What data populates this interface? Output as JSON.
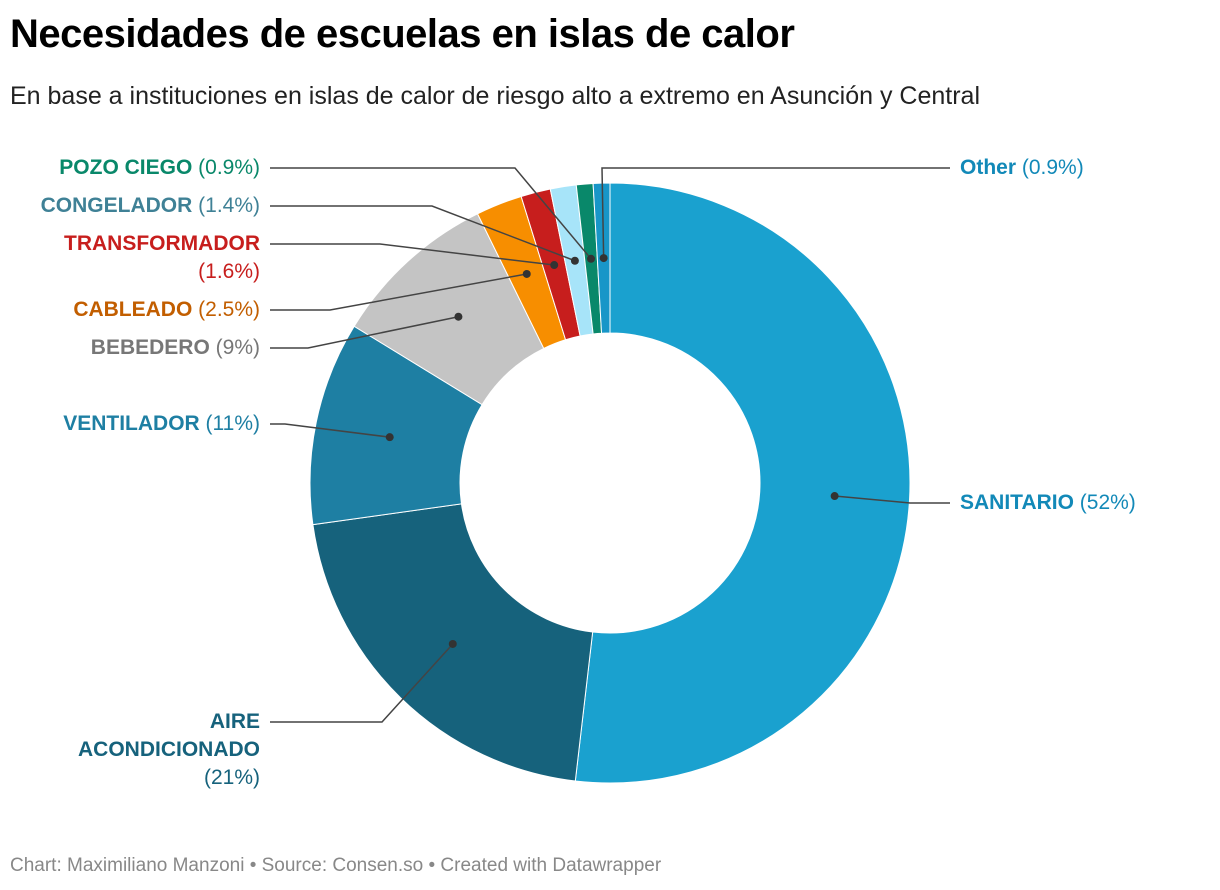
{
  "title": "Necesidades de escuelas en islas de calor",
  "subtitle": "En base a instituciones en islas de calor de riesgo alto a extremo en Asunción y Central",
  "footer": "Chart: Maximiliano Manzoni • Source: Consen.so • Created with Datawrapper",
  "chart_data": {
    "type": "pie",
    "variant": "donut",
    "categories": [
      "SANITARIO",
      "AIRE ACONDICIONADO",
      "VENTILADOR",
      "BEBEDERO",
      "CABLEADO",
      "TRANSFORMADOR",
      "CONGELADOR",
      "POZO CIEGO",
      "Other"
    ],
    "values": [
      52,
      21,
      11,
      9,
      2.5,
      1.6,
      1.4,
      0.9,
      0.9
    ],
    "value_labels": [
      "(52%)",
      "(21%)",
      "(11%)",
      "(9%)",
      "(2.5%)",
      "(1.6%)",
      "(1.4%)",
      "(0.9%)",
      "(0.9%)"
    ],
    "colors": [
      "#1aa1cf",
      "#16627c",
      "#1e7fa3",
      "#c4c4c4",
      "#f78e00",
      "#c71e1d",
      "#a7e4f9",
      "#09886a",
      "#1896c8"
    ],
    "label_colors": [
      "#1289b8",
      "#16627c",
      "#1e7fa3",
      "#777777",
      "#c25e00",
      "#c71e1d",
      "#3f8196",
      "#09886a",
      "#1289b8"
    ]
  }
}
